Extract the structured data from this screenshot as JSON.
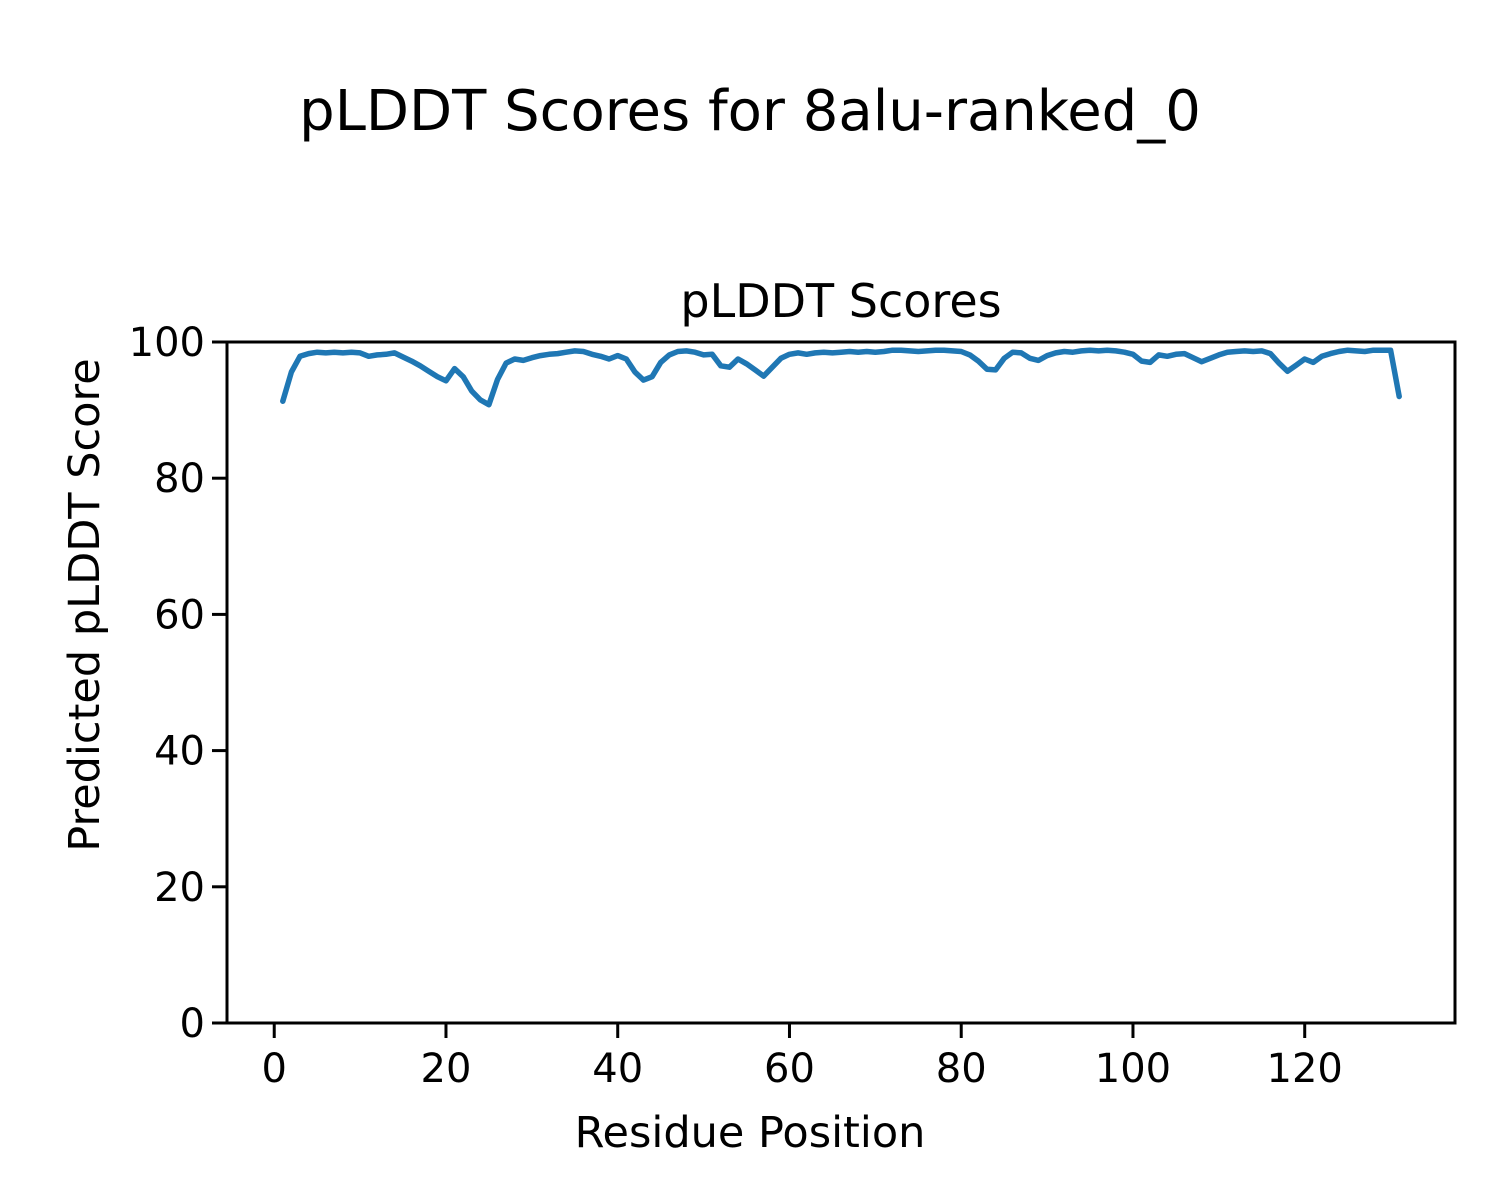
{
  "figure": {
    "title": "pLDDT Scores for 8alu-ranked_0"
  },
  "chart_data": {
    "type": "line",
    "title": "pLDDT Scores",
    "xlabel": "Residue Position",
    "ylabel": "Predicted pLDDT Score",
    "grid": false,
    "legend": "none",
    "background": "#ffffff",
    "axes_color": "#000000",
    "line_color": "#1f77b4",
    "xlim": [
      -5.5,
      137.5
    ],
    "ylim": [
      0,
      100
    ],
    "xticks": [
      0,
      20,
      40,
      60,
      80,
      100,
      120
    ],
    "yticks": [
      0,
      20,
      40,
      60,
      80,
      100
    ],
    "series": [
      {
        "name": "pLDDT",
        "x_start": 1,
        "values": [
          91.3,
          95.6,
          97.9,
          98.3,
          98.5,
          98.4,
          98.5,
          98.4,
          98.5,
          98.4,
          97.9,
          98.1,
          98.2,
          98.4,
          97.8,
          97.2,
          96.5,
          95.7,
          94.9,
          94.3,
          96.1,
          94.9,
          92.8,
          91.5,
          90.8,
          94.5,
          96.9,
          97.5,
          97.3,
          97.7,
          98.0,
          98.2,
          98.3,
          98.5,
          98.7,
          98.6,
          98.2,
          97.9,
          97.5,
          98.0,
          97.5,
          95.6,
          94.4,
          94.9,
          97.0,
          98.1,
          98.6,
          98.7,
          98.5,
          98.1,
          98.2,
          96.5,
          96.3,
          97.5,
          96.8,
          95.9,
          95.0,
          96.3,
          97.6,
          98.2,
          98.4,
          98.2,
          98.4,
          98.5,
          98.4,
          98.5,
          98.6,
          98.5,
          98.6,
          98.5,
          98.6,
          98.8,
          98.8,
          98.7,
          98.6,
          98.7,
          98.8,
          98.8,
          98.7,
          98.6,
          98.1,
          97.2,
          96.0,
          95.9,
          97.6,
          98.5,
          98.4,
          97.6,
          97.3,
          98.0,
          98.4,
          98.6,
          98.5,
          98.7,
          98.8,
          98.7,
          98.8,
          98.7,
          98.5,
          98.2,
          97.2,
          97.0,
          98.1,
          97.9,
          98.2,
          98.3,
          97.7,
          97.1,
          97.6,
          98.1,
          98.5,
          98.6,
          98.7,
          98.6,
          98.7,
          98.3,
          96.9,
          95.7,
          96.6,
          97.5,
          97.0,
          97.9,
          98.3,
          98.6,
          98.8,
          98.7,
          98.6,
          98.8,
          98.8,
          98.8,
          92.0
        ]
      }
    ]
  }
}
